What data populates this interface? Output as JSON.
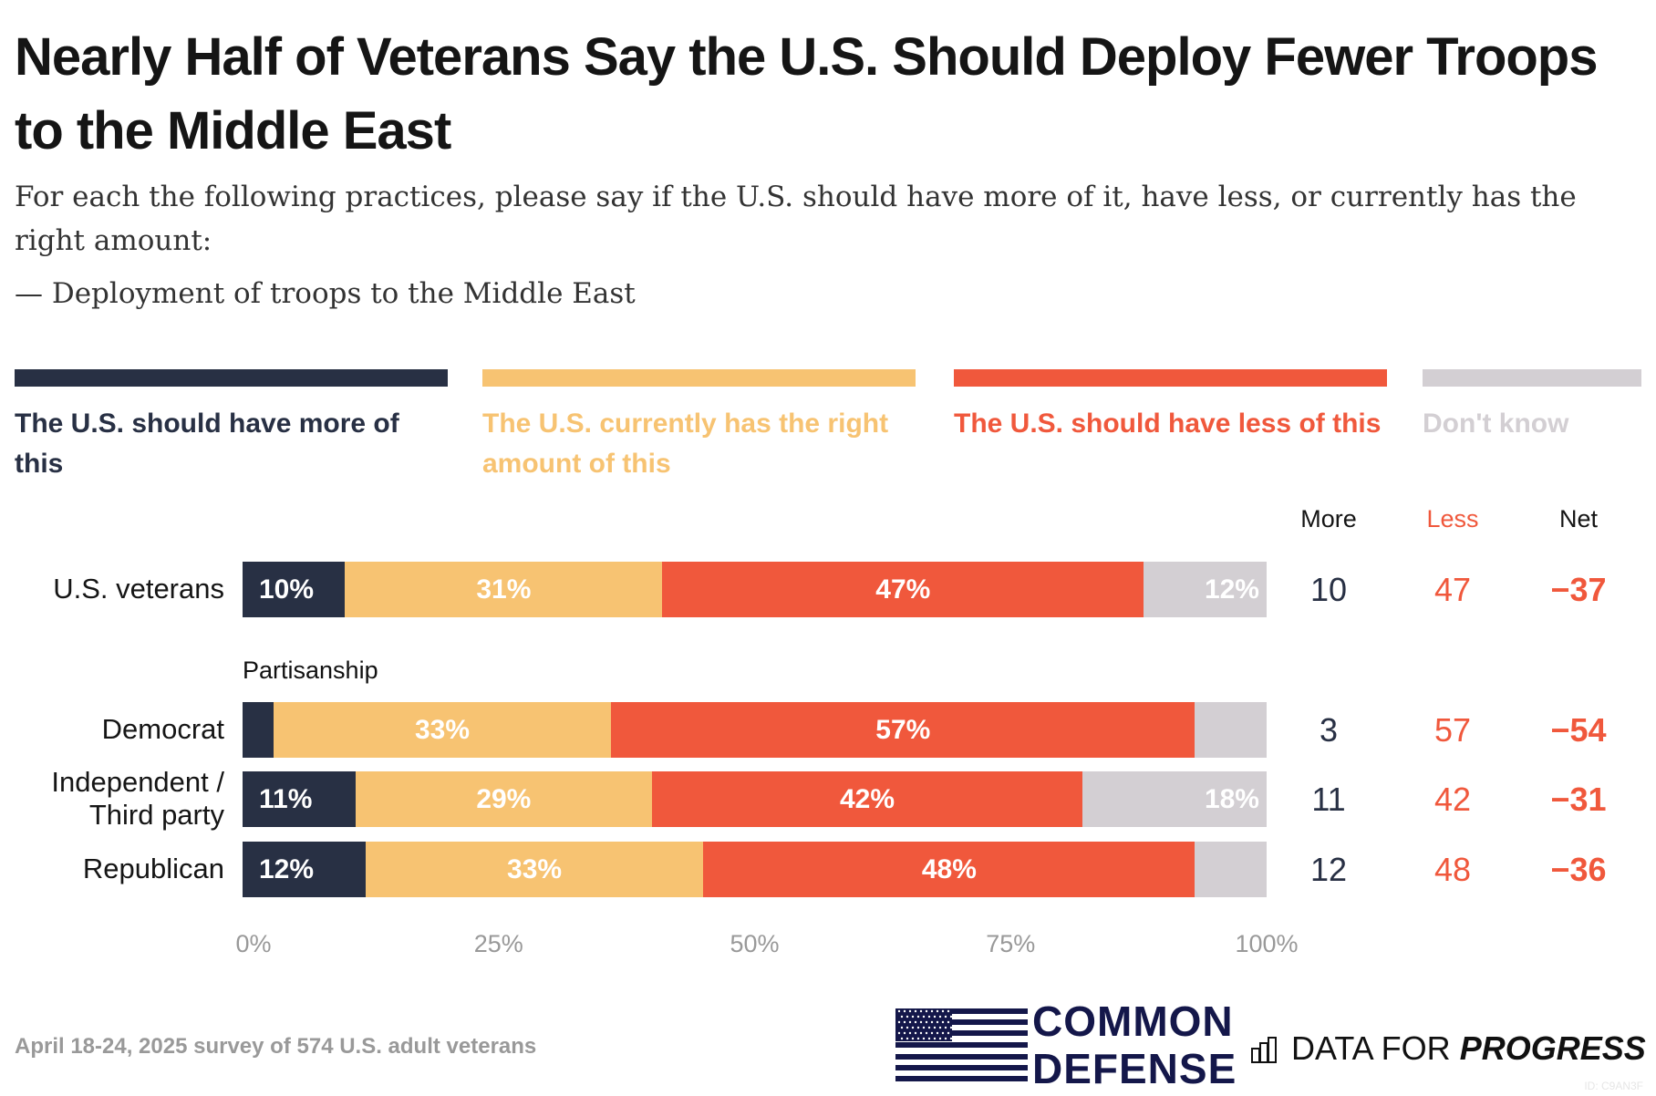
{
  "title": "Nearly Half of Veterans Say the U.S. Should Deploy Fewer Troops to the Middle East",
  "subtitle": "For each the following practices, please say if the U.S. should have more of it, have less, or currently has the right amount:",
  "subtitle2": "— Deployment of troops to the Middle East",
  "footer": "April 18-24, 2025 survey of 574 U.S. adult veterans",
  "id_tag": "ID: C9AN3F",
  "logos": {
    "common_defense": "COMMON DEFENSE",
    "dfp_regular": "DATA FOR ",
    "dfp_bold": "PROGRESS"
  },
  "colors": {
    "more": "#283044",
    "right": "#F7C372",
    "less": "#F0583C",
    "dontknow": "#D3CFD3"
  },
  "chart_data": {
    "type": "bar",
    "orientation": "horizontal-stacked",
    "legend": [
      "The U.S. should have more of this",
      "The U.S. currently has the right amount of this",
      "The U.S. should have less of this",
      "Don't know"
    ],
    "legend_placement": "top",
    "group_label": "Partisanship",
    "categories": [
      "U.S. veterans",
      "Democrat",
      "Independent / Third party",
      "Republican"
    ],
    "series": [
      {
        "name": "The U.S. should have more of this",
        "values": [
          10,
          3,
          11,
          12
        ],
        "labels": [
          "10%",
          "",
          "11%",
          "12%"
        ]
      },
      {
        "name": "The U.S. currently has the right amount of this",
        "values": [
          31,
          33,
          29,
          33
        ],
        "labels": [
          "31%",
          "33%",
          "29%",
          "33%"
        ]
      },
      {
        "name": "The U.S. should have less of this",
        "values": [
          47,
          57,
          42,
          48
        ],
        "labels": [
          "47%",
          "57%",
          "42%",
          "48%"
        ]
      },
      {
        "name": "Don't know",
        "values": [
          12,
          7,
          18,
          7
        ],
        "labels": [
          "12%",
          "",
          "18%",
          ""
        ]
      }
    ],
    "xlim": [
      0,
      100
    ],
    "xticks": [
      "0%",
      "25%",
      "50%",
      "75%",
      "100%"
    ],
    "table": {
      "headers": [
        "More",
        "Less",
        "Net"
      ],
      "more": [
        "10",
        "3",
        "11",
        "12"
      ],
      "less": [
        "47",
        "57",
        "42",
        "48"
      ],
      "net": [
        "−37",
        "−54",
        "−31",
        "−36"
      ]
    }
  }
}
